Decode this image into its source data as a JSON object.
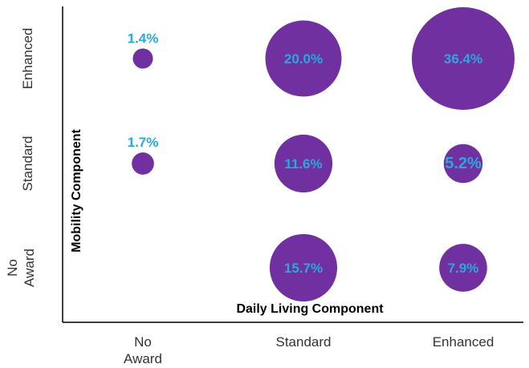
{
  "chart_data": {
    "type": "bubble",
    "x_categories": [
      "No Award",
      "Standard",
      "Enhanced"
    ],
    "y_categories": [
      "No Award",
      "Standard",
      "Enhanced"
    ],
    "xlabel": "Daily Living Component",
    "ylabel": "Mobility Component",
    "points": [
      {
        "x": "No Award",
        "y": "Enhanced",
        "value": 1.4,
        "label": "1.4%"
      },
      {
        "x": "Standard",
        "y": "Enhanced",
        "value": 20.0,
        "label": "20.0%"
      },
      {
        "x": "Enhanced",
        "y": "Enhanced",
        "value": 36.4,
        "label": "36.4%"
      },
      {
        "x": "No Award",
        "y": "Standard",
        "value": 1.7,
        "label": "1.7%"
      },
      {
        "x": "Standard",
        "y": "Standard",
        "value": 11.6,
        "label": "11.6%"
      },
      {
        "x": "Enhanced",
        "y": "Standard",
        "value": 5.2,
        "label": "5.2%"
      },
      {
        "x": "Standard",
        "y": "No Award",
        "value": 15.7,
        "label": "15.7%"
      },
      {
        "x": "Enhanced",
        "y": "No Award",
        "value": 7.9,
        "label": "7.9%"
      }
    ],
    "bubble_color": "#7030a0",
    "label_color": "#29a8e0",
    "axis_color": "#000000",
    "grid": false,
    "legend": "none"
  }
}
